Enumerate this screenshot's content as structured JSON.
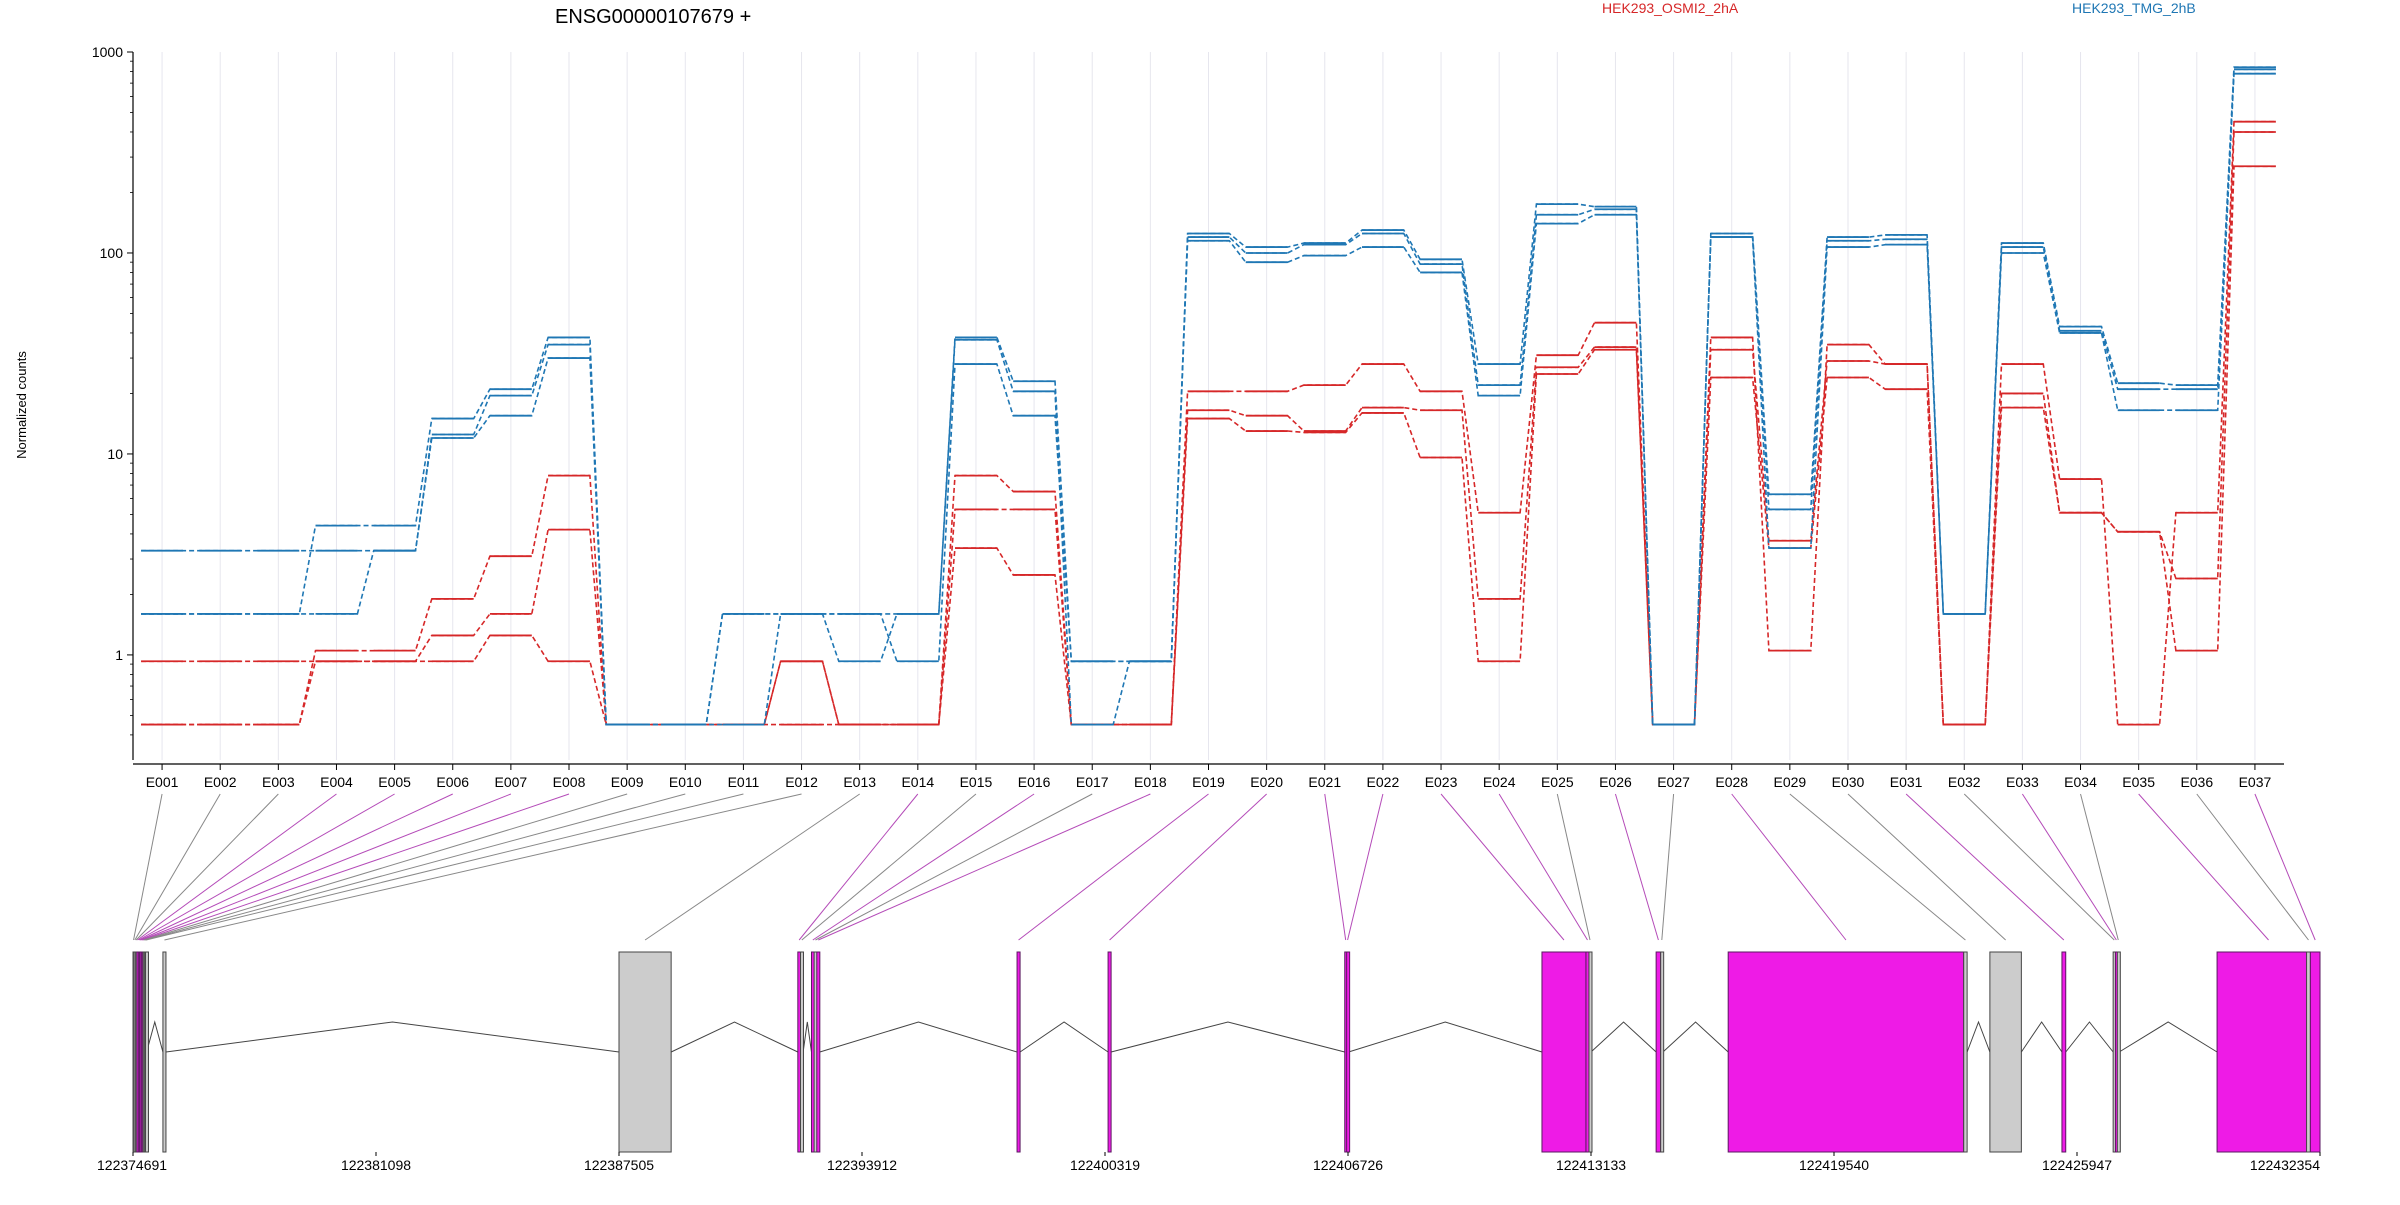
{
  "chart_data": {
    "type": "line",
    "title": "ENSG00000107679 +",
    "ylabel": "Normalized counts",
    "xlabel": "",
    "yscale": "log",
    "ylim": [
      0.35,
      1000
    ],
    "yticks": [
      "1",
      "10",
      "100",
      "1000"
    ],
    "grid": true,
    "legend_placement": "top",
    "categories": [
      "E001",
      "E002",
      "E003",
      "E004",
      "E005",
      "E006",
      "E007",
      "E008",
      "E009",
      "E010",
      "E011",
      "E012",
      "E013",
      "E014",
      "E015",
      "E016",
      "E017",
      "E018",
      "E019",
      "E020",
      "E021",
      "E022",
      "E023",
      "E024",
      "E025",
      "E026",
      "E027",
      "E028",
      "E029",
      "E030",
      "E031",
      "E032",
      "E033",
      "E034",
      "E035",
      "E036",
      "E037"
    ],
    "series": [
      {
        "name": "HEK293_OSMI2_2hA",
        "color": "#d62728",
        "group": "HEK293_OSMI2_2hA",
        "values": [
          0.45,
          0.45,
          0.45,
          1.05,
          1.05,
          1.9,
          3.1,
          7.8,
          0.45,
          0.45,
          0.45,
          0.45,
          0.45,
          0.45,
          7.8,
          6.5,
          0.45,
          0.45,
          20.5,
          20.5,
          22,
          28,
          20.5,
          5.1,
          31,
          45,
          0.45,
          38,
          1.05,
          35,
          28,
          0.45,
          28,
          7.5,
          0.45,
          5.1,
          450
        ]
      },
      {
        "name": "HEK293_OSMI2_2hA",
        "color": "#d62728",
        "group": "HEK293_OSMI2_2hA",
        "values": [
          0.93,
          0.93,
          0.93,
          0.93,
          0.93,
          1.25,
          1.6,
          4.2,
          0.45,
          0.45,
          0.45,
          0.93,
          0.45,
          0.45,
          5.3,
          5.3,
          0.45,
          0.45,
          16.5,
          15.5,
          13,
          17,
          16.5,
          1.9,
          27,
          34,
          0.45,
          33,
          3.7,
          29,
          28,
          0.45,
          20,
          5.1,
          4.1,
          2.4,
          400
        ]
      },
      {
        "name": "HEK293_OSMI2_2hA",
        "color": "#d62728",
        "group": "HEK293_OSMI2_2hA",
        "values": [
          0.45,
          0.45,
          0.45,
          0.93,
          0.93,
          0.93,
          1.25,
          0.93,
          0.45,
          0.45,
          0.45,
          0.93,
          0.45,
          0.45,
          3.4,
          2.5,
          0.45,
          0.45,
          15,
          13,
          12.8,
          16,
          9.6,
          0.93,
          25,
          33,
          0.45,
          24,
          3.4,
          24,
          21,
          0.45,
          17,
          5.1,
          4.1,
          1.05,
          270
        ]
      },
      {
        "name": "HEK293_TMG_2hB",
        "color": "#1f77b4",
        "group": "HEK293_TMG_2hB",
        "values": [
          1.6,
          1.6,
          1.6,
          1.6,
          3.3,
          12,
          15.5,
          30,
          0.45,
          0.45,
          0.45,
          1.6,
          1.6,
          0.93,
          28,
          15.5,
          0.93,
          0.93,
          115,
          90,
          97,
          107,
          80,
          19.5,
          140,
          155,
          0.45,
          120,
          3.4,
          107,
          110,
          1.6,
          100,
          40,
          16.5,
          16.5,
          780
        ]
      },
      {
        "name": "HEK293_TMG_2hB",
        "color": "#1f77b4",
        "group": "HEK293_TMG_2hB",
        "values": [
          3.3,
          3.3,
          3.3,
          3.3,
          3.3,
          12.5,
          19.5,
          35,
          0.45,
          0.45,
          1.6,
          1.6,
          1.6,
          1.6,
          37,
          20.5,
          0.45,
          0.93,
          120,
          100,
          110,
          125,
          88,
          22,
          155,
          165,
          0.45,
          120,
          5.3,
          115,
          117,
          1.6,
          107,
          41,
          21,
          21,
          820
        ]
      },
      {
        "name": "HEK293_TMG_2hB",
        "color": "#1f77b4",
        "group": "HEK293_TMG_2hB",
        "values": [
          1.6,
          1.6,
          1.6,
          4.4,
          4.4,
          15,
          21,
          38,
          0.45,
          0.45,
          1.6,
          1.6,
          0.93,
          1.6,
          38,
          23,
          0.93,
          0.93,
          125,
          107,
          112,
          130,
          93,
          28,
          175,
          170,
          0.45,
          125,
          6.3,
          120,
          123,
          1.6,
          112,
          43,
          22.5,
          22,
          840
        ]
      }
    ],
    "gene_model": {
      "coordinate_ticks": [
        "122374691",
        "122381098",
        "122387505",
        "122393912",
        "122400319",
        "122406726",
        "122413133",
        "122419540",
        "122425947",
        "122432354"
      ],
      "exonic_parts": [
        {
          "id": "E001",
          "start": 122374691,
          "end": 122374720,
          "differential": false
        },
        {
          "id": "E002",
          "start": 122374720,
          "end": 122374760,
          "differential": false
        },
        {
          "id": "E003",
          "start": 122374760,
          "end": 122374790,
          "differential": false
        },
        {
          "id": "E004",
          "start": 122374790,
          "end": 122374830,
          "differential": true
        },
        {
          "id": "E005",
          "start": 122374830,
          "end": 122374860,
          "differential": true
        },
        {
          "id": "E006",
          "start": 122374860,
          "end": 122374900,
          "differential": true
        },
        {
          "id": "E007",
          "start": 122374900,
          "end": 122374930,
          "differential": true
        },
        {
          "id": "E008",
          "start": 122374930,
          "end": 122374960,
          "differential": true
        },
        {
          "id": "E009",
          "start": 122374960,
          "end": 122374990,
          "differential": false
        },
        {
          "id": "E010",
          "start": 122374990,
          "end": 122375020,
          "differential": false
        },
        {
          "id": "E011",
          "start": 122375020,
          "end": 122375050,
          "differential": false
        },
        {
          "id": "E012",
          "start": 122375480,
          "end": 122375560,
          "differential": false
        },
        {
          "id": "E013",
          "start": 122387505,
          "end": 122388880,
          "differential": false
        },
        {
          "id": "E014",
          "start": 122392220,
          "end": 122392290,
          "differential": true
        },
        {
          "id": "E015",
          "start": 122392290,
          "end": 122392360,
          "differential": false
        },
        {
          "id": "E016",
          "start": 122392580,
          "end": 122392650,
          "differential": true
        },
        {
          "id": "E017",
          "start": 122392650,
          "end": 122392720,
          "differential": false
        },
        {
          "id": "E018",
          "start": 122392720,
          "end": 122392800,
          "differential": true
        },
        {
          "id": "E019",
          "start": 122398000,
          "end": 122398080,
          "differential": true
        },
        {
          "id": "E020",
          "start": 122400400,
          "end": 122400480,
          "differential": true
        },
        {
          "id": "E021",
          "start": 122406640,
          "end": 122406690,
          "differential": true
        },
        {
          "id": "E022",
          "start": 122406690,
          "end": 122406740,
          "differential": true
        },
        {
          "id": "E023",
          "start": 122411840,
          "end": 122413000,
          "differential": true
        },
        {
          "id": "E024",
          "start": 122413000,
          "end": 122413080,
          "differential": true
        },
        {
          "id": "E025",
          "start": 122413080,
          "end": 122413133,
          "differential": false
        },
        {
          "id": "E026",
          "start": 122414850,
          "end": 122414970,
          "differential": true
        },
        {
          "id": "E027",
          "start": 122414970,
          "end": 122415030,
          "differential": false
        },
        {
          "id": "E028",
          "start": 122416750,
          "end": 122422960,
          "differential": true
        },
        {
          "id": "E029",
          "start": 122422960,
          "end": 122423050,
          "differential": false
        },
        {
          "id": "E030",
          "start": 122423650,
          "end": 122424480,
          "differential": false
        },
        {
          "id": "E031",
          "start": 122425550,
          "end": 122425650,
          "differential": true
        },
        {
          "id": "E032",
          "start": 122426900,
          "end": 122426960,
          "differential": false
        },
        {
          "id": "E033",
          "start": 122426960,
          "end": 122427010,
          "differential": true
        },
        {
          "id": "E034",
          "start": 122427010,
          "end": 122427060,
          "differential": false
        },
        {
          "id": "E035",
          "start": 122429640,
          "end": 122432354,
          "differential": true
        },
        {
          "id": "E036",
          "start": 122432000,
          "end": 122432100,
          "differential": false
        },
        {
          "id": "E037",
          "start": 122432100,
          "end": 122432354,
          "differential": true
        }
      ]
    }
  },
  "colors": {
    "osmi": "#d62728",
    "tmg": "#1f77b4",
    "exon_diff": "#ee1be6",
    "exon_plain": "#cccccc",
    "connector_diff": "#b44bb8",
    "connector_plain": "#888888"
  },
  "legend": {
    "series_a": "HEK293_OSMI2_2hA",
    "series_b": "HEK293_TMG_2hB"
  }
}
